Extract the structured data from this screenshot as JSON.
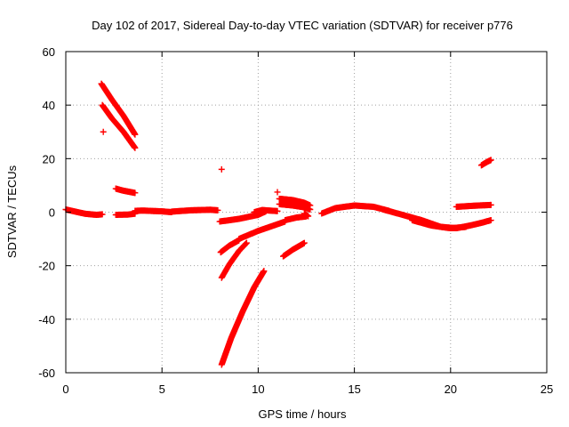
{
  "chart_data": {
    "type": "scatter",
    "title": "Day 102 of 2017, Sidereal Day-to-day VTEC variation (SDTVAR) for receiver p776",
    "xlabel": "GPS time / hours",
    "ylabel": "SDTVAR / TECUs",
    "xlim": [
      0,
      25
    ],
    "ylim": [
      -60,
      60
    ],
    "xticks": [
      0,
      5,
      10,
      15,
      20,
      25
    ],
    "yticks": [
      -60,
      -40,
      -20,
      0,
      20,
      40,
      60
    ],
    "grid": true,
    "marker": "+",
    "color": "#ff0000",
    "segments": [
      {
        "x": [
          0.0,
          0.5,
          1.0,
          1.6,
          1.9
        ],
        "y": [
          1.0,
          0.2,
          -0.6,
          -1.0,
          -0.8
        ],
        "step": 0.04
      },
      {
        "x": [
          1.85,
          2.4,
          3.0,
          3.6
        ],
        "y": [
          48.0,
          42.0,
          36.0,
          29.0
        ],
        "step": 0.02
      },
      {
        "x": [
          1.9,
          2.4,
          3.0,
          3.6
        ],
        "y": [
          40.0,
          35.0,
          30.0,
          24.0
        ],
        "step": 0.02
      },
      {
        "x": [
          1.95
        ],
        "y": [
          30.0
        ],
        "step": 1
      },
      {
        "x": [
          2.6,
          3.0,
          3.6
        ],
        "y": [
          8.8,
          8.0,
          7.2
        ],
        "step": 0.03
      },
      {
        "x": [
          2.6,
          3.2,
          3.6
        ],
        "y": [
          -1.0,
          -0.9,
          -0.6
        ],
        "step": 0.05
      },
      {
        "x": [
          3.6,
          4.0,
          5.0,
          5.5
        ],
        "y": [
          0.5,
          0.6,
          0.3,
          0.0
        ],
        "step": 0.04
      },
      {
        "x": [
          5.5,
          6.5,
          7.5,
          7.9
        ],
        "y": [
          0.2,
          0.7,
          0.9,
          0.7
        ],
        "step": 0.04
      },
      {
        "x": [
          8.0,
          9.0,
          10.0,
          10.4
        ],
        "y": [
          -3.5,
          -2.5,
          -1.0,
          0.3
        ],
        "step": 0.04
      },
      {
        "x": [
          9.8,
          10.2,
          10.6,
          11.0
        ],
        "y": [
          0.0,
          0.8,
          0.6,
          0.4
        ],
        "step": 0.04
      },
      {
        "x": [
          8.1
        ],
        "y": [
          16.0
        ],
        "step": 1
      },
      {
        "x": [
          8.05,
          8.5,
          9.0
        ],
        "y": [
          -15.0,
          -12.5,
          -10.5
        ],
        "step": 0.03
      },
      {
        "x": [
          8.1,
          8.5,
          9.0,
          9.4
        ],
        "y": [
          -24.5,
          -19.5,
          -14.5,
          -11.5
        ],
        "step": 0.03
      },
      {
        "x": [
          8.1,
          8.6,
          9.2,
          9.8,
          10.3
        ],
        "y": [
          -57.0,
          -47.0,
          -37.0,
          -28.0,
          -22.0
        ],
        "step": 0.015
      },
      {
        "x": [
          9.0,
          10.0,
          11.0,
          11.4
        ],
        "y": [
          -10.0,
          -7.0,
          -4.5,
          -3.5
        ],
        "step": 0.04
      },
      {
        "x": [
          11.4,
          12.0,
          12.5
        ],
        "y": [
          -3.0,
          -2.0,
          -1.6
        ],
        "step": 0.04
      },
      {
        "x": [
          11.3,
          11.8,
          12.4
        ],
        "y": [
          -16.5,
          -14.0,
          -11.5
        ],
        "step": 0.03
      },
      {
        "x": [
          11.0
        ],
        "y": [
          7.5
        ],
        "step": 1
      },
      {
        "x": [
          11.1,
          11.8,
          12.4,
          12.7
        ],
        "y": [
          5.0,
          4.5,
          3.5,
          2.5
        ],
        "step": 0.03
      },
      {
        "x": [
          11.1,
          11.8,
          12.4,
          12.7
        ],
        "y": [
          3.0,
          2.5,
          1.8,
          1.0
        ],
        "step": 0.03
      },
      {
        "x": [
          12.4,
          12.6
        ],
        "y": [
          -0.5,
          -1.5
        ],
        "step": 0.03
      },
      {
        "x": [
          13.3,
          14.0,
          15.0,
          16.0,
          16.8
        ],
        "y": [
          -0.5,
          1.5,
          2.5,
          2.0,
          0.5
        ],
        "step": 0.04
      },
      {
        "x": [
          16.5,
          17.5,
          18.5,
          19.5,
          20.3
        ],
        "y": [
          1.0,
          -1.0,
          -3.0,
          -5.5,
          -6.0
        ],
        "step": 0.04
      },
      {
        "x": [
          18.0,
          19.0,
          20.0,
          20.8
        ],
        "y": [
          -3.0,
          -5.0,
          -6.0,
          -5.5
        ],
        "step": 0.04
      },
      {
        "x": [
          20.3,
          21.0,
          21.6,
          22.1
        ],
        "y": [
          -6.0,
          -5.0,
          -4.0,
          -3.0
        ],
        "step": 0.04
      },
      {
        "x": [
          20.3,
          21.2,
          22.1
        ],
        "y": [
          2.0,
          2.4,
          2.7
        ],
        "step": 0.04
      },
      {
        "x": [
          21.6,
          21.9,
          22.1
        ],
        "y": [
          17.5,
          18.8,
          19.5
        ],
        "step": 0.03
      }
    ]
  }
}
